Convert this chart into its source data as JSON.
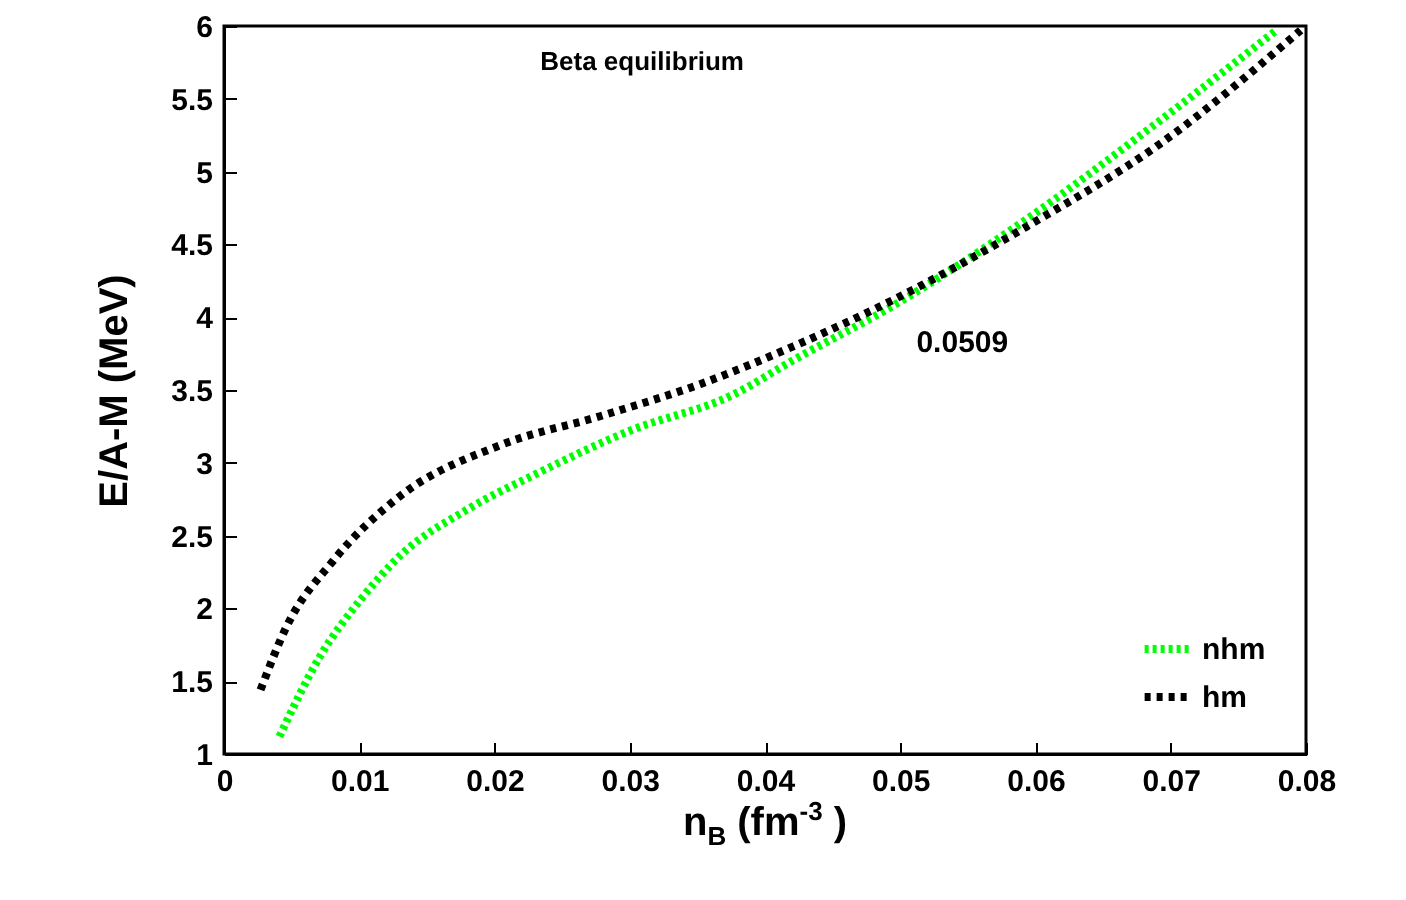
{
  "chart_data": {
    "type": "line",
    "title": "Beta equilibrium",
    "xlabel": "n$_{B}$ (fm$^{-3}$ )",
    "ylabel": "E/A-M (MeV)",
    "xlim": [
      0,
      0.08
    ],
    "xticks": [
      0,
      0.01,
      0.02,
      0.03,
      0.04,
      0.05,
      0.06,
      0.07,
      0.08
    ],
    "ylim": [
      1,
      6
    ],
    "yticks": [
      1,
      1.5,
      2,
      2.5,
      3,
      3.5,
      4,
      4.5,
      5,
      5.5,
      6
    ],
    "legend": "bottom right",
    "grid": false,
    "annotations": [
      {
        "text": "0.0509",
        "x": 0.0509,
        "y": 4.13
      }
    ],
    "series": [
      {
        "name": "nhm",
        "color": "#00ff00",
        "line_style": "dotted",
        "x": [
          0.0041,
          0.0071,
          0.0101,
          0.013,
          0.018,
          0.023,
          0.03,
          0.0377,
          0.042,
          0.0495,
          0.0593,
          0.0692,
          0.0778
        ],
        "values": [
          1.12,
          1.67,
          2.06,
          2.36,
          2.68,
          2.92,
          3.22,
          3.47,
          3.7,
          4.08,
          4.67,
          5.35,
          5.97
        ]
      },
      {
        "name": "hm",
        "color": "#000000",
        "line_style": "dashed",
        "x": [
          0.0027,
          0.0046,
          0.0081,
          0.013,
          0.0204,
          0.0278,
          0.0352,
          0.0421,
          0.0495,
          0.0593,
          0.0692,
          0.0796
        ],
        "values": [
          1.44,
          1.87,
          2.33,
          2.77,
          3.12,
          3.32,
          3.54,
          3.8,
          4.12,
          4.62,
          5.19,
          5.97
        ]
      }
    ]
  }
}
